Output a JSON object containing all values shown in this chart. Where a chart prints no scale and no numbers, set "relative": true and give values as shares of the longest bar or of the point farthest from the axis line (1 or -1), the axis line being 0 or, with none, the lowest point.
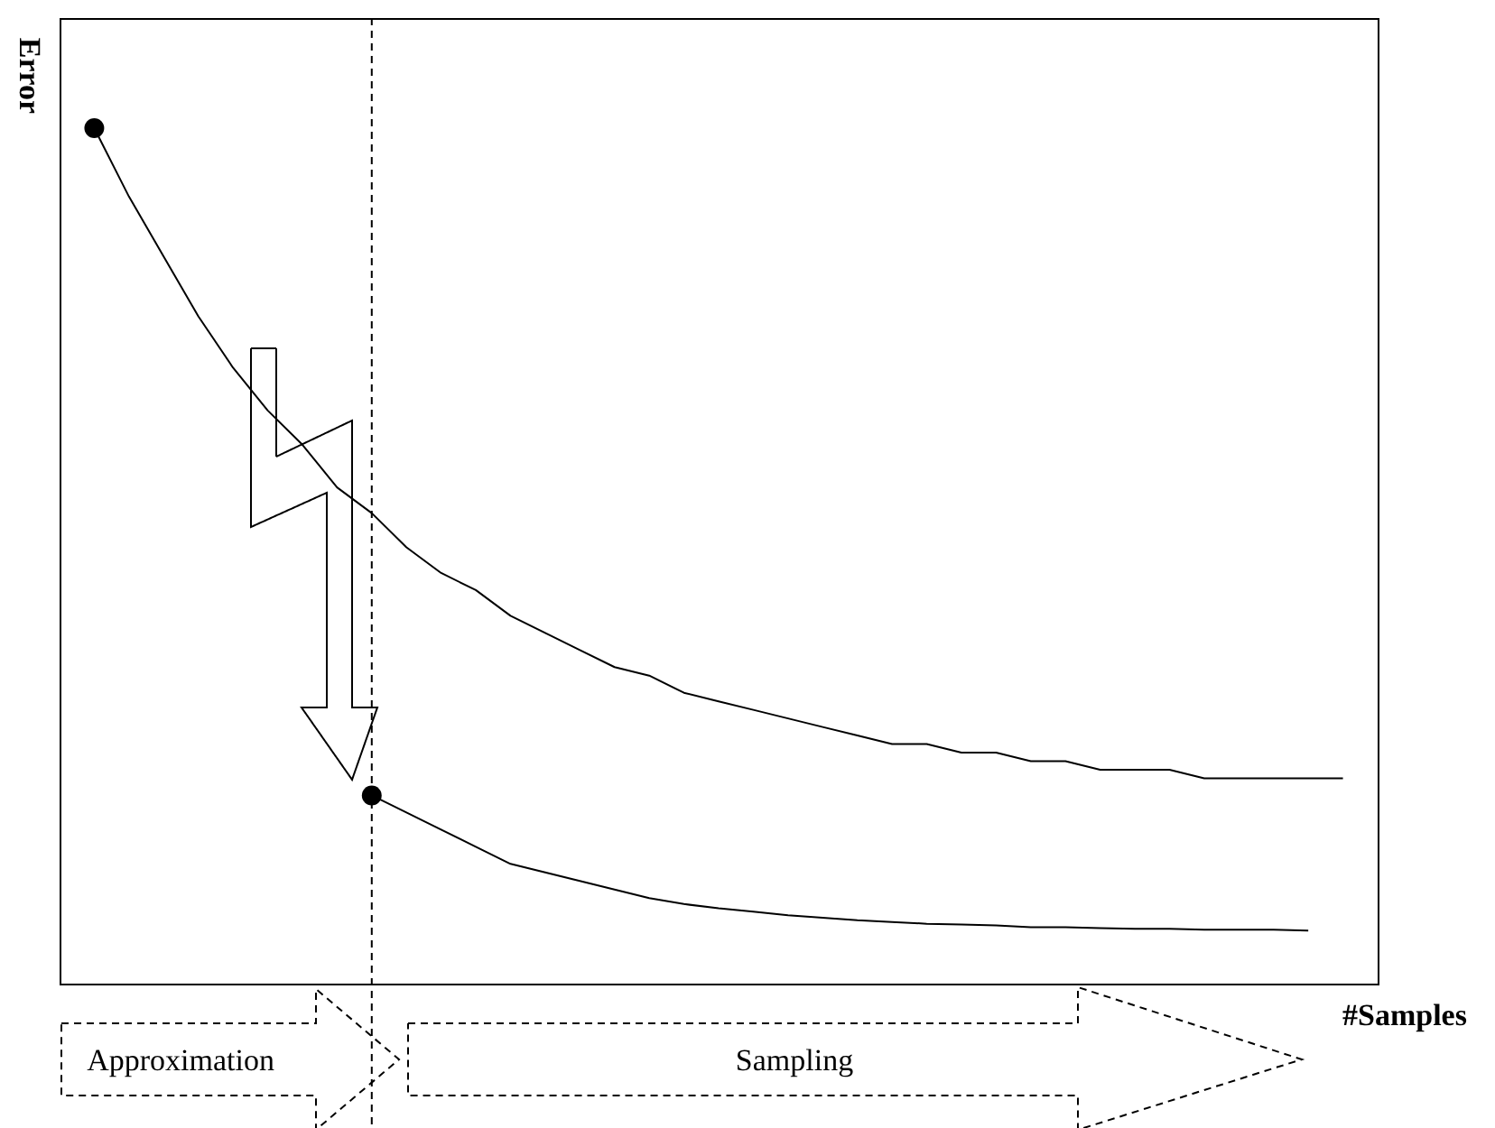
{
  "chart_data": {
    "type": "line",
    "relative": true,
    "xlabel": "#Samples",
    "ylabel": "Error",
    "categories": [
      null,
      null,
      null,
      null,
      null,
      null,
      null,
      null,
      null,
      null,
      null,
      null,
      null,
      null,
      null,
      null,
      null,
      null,
      null,
      null,
      null,
      null,
      null,
      null,
      null,
      null,
      null,
      null,
      null,
      null,
      null,
      null,
      null,
      null,
      null,
      null,
      null
    ],
    "series": [
      {
        "color": "#000000",
        "values": [
          1.0,
          0.92,
          0.85,
          0.78,
          0.72,
          0.67,
          0.63,
          0.58,
          0.55,
          0.51,
          0.48,
          0.46,
          0.43,
          0.41,
          0.39,
          0.37,
          0.36,
          0.34,
          0.33,
          0.32,
          0.31,
          0.3,
          0.29,
          0.28,
          0.28,
          0.27,
          0.27,
          0.26,
          0.26,
          0.25,
          0.25,
          0.25,
          0.24,
          0.24,
          0.24,
          0.24,
          0.24
        ]
      },
      {
        "color": "#000000",
        "values": [
          null,
          null,
          null,
          null,
          null,
          null,
          null,
          null,
          0.22,
          0.2,
          0.18,
          0.16,
          0.14,
          0.13,
          0.12,
          0.11,
          0.1,
          0.093,
          0.088,
          0.084,
          0.08,
          0.077,
          0.074,
          0.072,
          0.07,
          0.069,
          0.068,
          0.066,
          0.066,
          0.065,
          0.064,
          0.064,
          0.063,
          0.063,
          0.063,
          0.062,
          null
        ]
      }
    ],
    "annotations": [
      "Approximation",
      "Sampling"
    ]
  }
}
